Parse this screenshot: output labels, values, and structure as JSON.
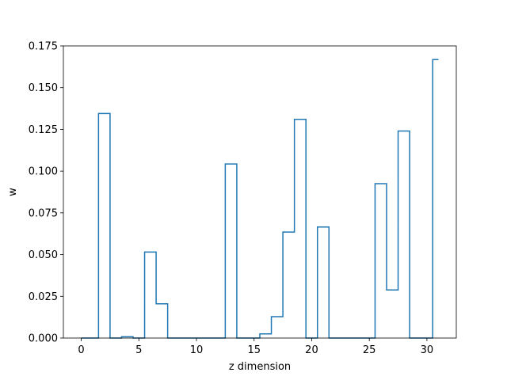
{
  "chart_data": {
    "type": "line",
    "drawstyle": "steps-mid",
    "title": "",
    "xlabel": "z dimension",
    "ylabel": "w",
    "xlim": [
      -1.55,
      32.55
    ],
    "ylim": [
      0,
      0.175
    ],
    "xticks": [
      0,
      5,
      10,
      15,
      20,
      25,
      30
    ],
    "yticks": [
      "0.000",
      "0.025",
      "0.050",
      "0.075",
      "0.100",
      "0.125",
      "0.150",
      "0.175"
    ],
    "grid": false,
    "series": [
      {
        "color": "#1f77b4",
        "x": [
          0,
          1,
          2,
          3,
          4,
          5,
          6,
          7,
          8,
          9,
          10,
          11,
          12,
          13,
          14,
          15,
          16,
          17,
          18,
          19,
          20,
          21,
          22,
          23,
          24,
          25,
          26,
          27,
          28,
          29,
          30,
          31
        ],
        "values": [
          0,
          0,
          0.1345,
          0,
          0.0008,
          0,
          0.0515,
          0.0205,
          0,
          0,
          0,
          0,
          0,
          0.1043,
          0,
          0,
          0.0025,
          0.0128,
          0.0635,
          0.131,
          0,
          0.0665,
          0,
          0,
          0,
          0,
          0.0925,
          0.0288,
          0.124,
          0,
          0,
          0.1668
        ]
      }
    ]
  }
}
